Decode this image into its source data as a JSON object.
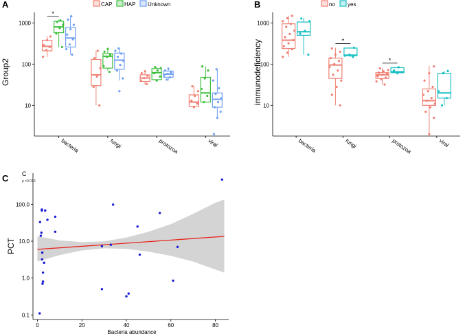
{
  "chart_data": [
    {
      "panel": "A",
      "type": "box",
      "legend": {
        "placement": "top",
        "entries": [
          "CAP",
          "HAP",
          "Unknown"
        ]
      },
      "ylabel": "Group2",
      "yscale": "log10",
      "ylim": [
        1.8,
        1800
      ],
      "ticks": [
        10,
        100,
        1000
      ],
      "tick_labels": [
        "10",
        "100",
        "1000"
      ],
      "categories": [
        "bacteria",
        "fungi",
        "protozoa",
        "viral"
      ],
      "colors": {
        "CAP": "#f07f73",
        "HAP": "#3cbf3c",
        "Unknown": "#6f9ff2"
      },
      "series": [
        {
          "name": "CAP",
          "boxes": [
            {
              "q1": 210,
              "med": 270,
              "q3": 380,
              "lo": 150,
              "hi": 480,
              "pts": [
                150,
                220,
                260,
                290,
                380,
                470
              ]
            },
            {
              "q1": 30,
              "med": 55,
              "q3": 130,
              "lo": 10,
              "hi": 210,
              "pts": [
                10,
                28,
                50,
                80,
                140,
                210
              ]
            },
            {
              "q1": 38,
              "med": 46,
              "q3": 55,
              "lo": 32,
              "hi": 68,
              "pts": [
                33,
                40,
                46,
                52,
                60,
                67
              ]
            },
            {
              "q1": 9.5,
              "med": 12,
              "q3": 18,
              "lo": 8.5,
              "hi": 30,
              "pts": [
                9,
                11,
                13,
                17,
                22,
                29
              ]
            }
          ]
        },
        {
          "name": "HAP",
          "boxes": [
            {
              "q1": 580,
              "med": 800,
              "q3": 1100,
              "lo": 260,
              "hi": 1200,
              "pts": [
                260,
                550,
                750,
                900,
                1050,
                1150
              ]
            },
            {
              "q1": 80,
              "med": 155,
              "q3": 180,
              "lo": 70,
              "hi": 240,
              "pts": [
                65,
                90,
                150,
                170,
                200,
                235
              ]
            },
            {
              "q1": 42,
              "med": 62,
              "q3": 78,
              "lo": 38,
              "hi": 85,
              "pts": [
                40,
                50,
                60,
                70,
                80,
                85
              ]
            },
            {
              "q1": 12,
              "med": 20,
              "q3": 48,
              "lo": 12,
              "hi": 88,
              "pts": [
                12,
                17,
                25,
                45,
                70,
                88
              ]
            }
          ]
        },
        {
          "name": "Unknown",
          "boxes": [
            {
              "q1": 260,
              "med": 430,
              "q3": 780,
              "lo": 170,
              "hi": 1500,
              "pts": [
                170,
                230,
                300,
                400,
                520,
                700,
                900,
                1200,
                1450
              ]
            },
            {
              "q1": 75,
              "med": 125,
              "q3": 185,
              "lo": 40,
              "hi": 250,
              "pts": [
                22,
                45,
                70,
                95,
                120,
                150,
                180,
                210,
                240
              ]
            },
            {
              "q1": 48,
              "med": 57,
              "q3": 68,
              "lo": 40,
              "hi": 80,
              "pts": [
                42,
                48,
                53,
                58,
                63,
                70,
                78
              ]
            },
            {
              "q1": 9,
              "med": 14,
              "q3": 20,
              "lo": 5,
              "hi": 78,
              "pts": [
                2,
                5,
                7,
                9,
                12,
                15,
                19,
                26,
                40,
                75
              ]
            }
          ]
        }
      ],
      "annotations": [
        {
          "category": "bacteria",
          "between": [
            "CAP",
            "HAP"
          ],
          "label": "*"
        }
      ]
    },
    {
      "panel": "B",
      "type": "box",
      "legend": {
        "placement": "top",
        "entries": [
          "no",
          "yes"
        ]
      },
      "ylabel": "immunodeficiency",
      "yscale": "log10",
      "ylim": [
        1.8,
        1800
      ],
      "ticks": [
        10,
        100,
        1000
      ],
      "tick_labels": [
        "10",
        "100",
        "1000"
      ],
      "categories": [
        "bacteria",
        "fungi",
        "protozoa",
        "viral"
      ],
      "colors": {
        "no": "#f07f73",
        "yes": "#18bfc4"
      },
      "series": [
        {
          "name": "no",
          "boxes": [
            {
              "q1": 240,
              "med": 380,
              "q3": 950,
              "lo": 150,
              "hi": 1500,
              "pts": [
                150,
                190,
                230,
                270,
                320,
                380,
                450,
                540,
                650,
                800,
                950,
                1100,
                1300,
                1480
              ]
            },
            {
              "q1": 45,
              "med": 95,
              "q3": 140,
              "lo": 10,
              "hi": 250,
              "pts": [
                10,
                18,
                28,
                40,
                55,
                70,
                85,
                100,
                120,
                140,
                170,
                200,
                240
              ]
            },
            {
              "q1": 45,
              "med": 55,
              "q3": 62,
              "lo": 32,
              "hi": 80,
              "pts": [
                32,
                38,
                43,
                47,
                51,
                55,
                58,
                62,
                67,
                72,
                79
              ]
            },
            {
              "q1": 10,
              "med": 13,
              "q3": 25,
              "lo": 2,
              "hi": 90,
              "pts": [
                2,
                5,
                7,
                9,
                11,
                13,
                15,
                18,
                22,
                28,
                40,
                60,
                88
              ]
            }
          ]
        },
        {
          "name": "yes",
          "boxes": [
            {
              "q1": 500,
              "med": 610,
              "q3": 1050,
              "lo": 170,
              "hi": 1300,
              "pts": [
                170,
                550,
                640,
                1100,
                1280
              ]
            },
            {
              "q1": 160,
              "med": 165,
              "q3": 245,
              "lo": 150,
              "hi": 255,
              "pts": [
                150,
                160,
                170,
                250
              ]
            },
            {
              "q1": 62,
              "med": 65,
              "q3": 82,
              "lo": 58,
              "hi": 85,
              "pts": [
                60,
                64,
                70,
                84
              ]
            },
            {
              "q1": 15,
              "med": 20,
              "q3": 60,
              "lo": 10,
              "hi": 68,
              "pts": [
                10,
                15,
                22,
                60,
                68
              ]
            }
          ]
        }
      ],
      "annotations": [
        {
          "category": "fungi",
          "between": [
            "no",
            "yes"
          ],
          "label": "*"
        },
        {
          "category": "protozoa",
          "between": [
            "no",
            "yes"
          ],
          "label": "*"
        }
      ]
    },
    {
      "panel": "C",
      "type": "scatter",
      "corner_label": "C",
      "subtitle": "p =0.013",
      "xlabel": "Bacteria abundance",
      "ylabel": "PCT",
      "xlim": [
        -2,
        86
      ],
      "xticks": [
        0,
        20,
        40,
        60,
        80
      ],
      "xtick_labels": [
        "0",
        "20",
        "40",
        "60",
        "80"
      ],
      "yscale": "log10",
      "ylim": [
        0.075,
        700
      ],
      "yticks": [
        0.1,
        1,
        10,
        100
      ],
      "ytick_labels": [
        "0.1",
        "1.0",
        "10.0",
        "100.0"
      ],
      "fit_line": {
        "x": [
          0,
          84
        ],
        "y": [
          6.0,
          13.5
        ],
        "color": "#e8221c"
      },
      "confidence_band": {
        "x": [
          0,
          10,
          20,
          30,
          40,
          50,
          60,
          70,
          80,
          84
        ],
        "lower": [
          2.8,
          4.2,
          5.6,
          6.4,
          6.2,
          5.2,
          4.0,
          2.8,
          1.7,
          1.4
        ],
        "upper": [
          13.5,
          10.5,
          9.4,
          9.9,
          12.5,
          18,
          29,
          55,
          110,
          135
        ]
      },
      "point_color": "#1a1ad6",
      "points": [
        [
          1,
          0.11
        ],
        [
          1.2,
          33
        ],
        [
          1.5,
          14
        ],
        [
          1.8,
          17
        ],
        [
          2,
          68
        ],
        [
          2,
          72
        ],
        [
          2.1,
          3.2
        ],
        [
          2.2,
          4.9
        ],
        [
          2.3,
          0.7
        ],
        [
          2.5,
          0.8
        ],
        [
          2.5,
          1.4
        ],
        [
          3,
          2.6
        ],
        [
          3.5,
          68
        ],
        [
          4.5,
          38
        ],
        [
          8,
          46
        ],
        [
          8,
          18
        ],
        [
          29,
          0.5
        ],
        [
          29,
          7.3
        ],
        [
          33,
          8
        ],
        [
          34,
          98
        ],
        [
          40,
          0.32
        ],
        [
          41,
          0.38
        ],
        [
          45,
          25
        ],
        [
          46,
          4.3
        ],
        [
          55,
          58
        ],
        [
          61,
          0.85
        ],
        [
          63,
          7
        ],
        [
          83,
          470
        ]
      ]
    }
  ],
  "panel_labels": {
    "a": "A",
    "b": "B",
    "c": "C"
  }
}
